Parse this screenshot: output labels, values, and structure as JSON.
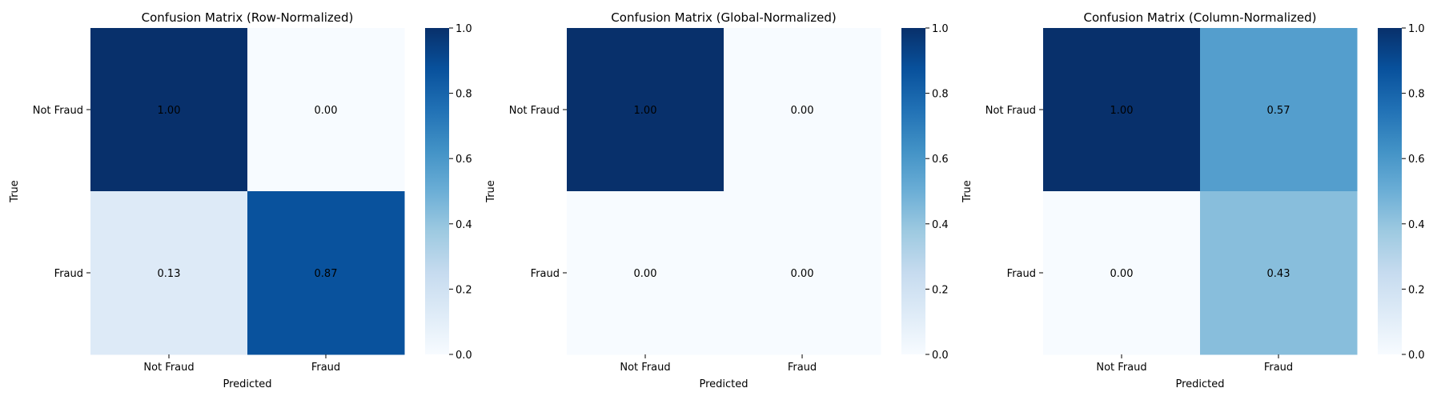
{
  "chart_data": [
    {
      "type": "heatmap",
      "title": "Confusion Matrix (Row-Normalized)",
      "xlabel": "Predicted",
      "ylabel": "True",
      "x_categories": [
        "Not Fraud",
        "Fraud"
      ],
      "y_categories": [
        "Not Fraud",
        "Fraud"
      ],
      "values": [
        [
          1.0,
          0.0
        ],
        [
          0.13,
          0.87
        ]
      ],
      "value_format": "0.00",
      "colormap": "Blues",
      "colorbar": {
        "range": [
          0,
          1
        ],
        "ticks": [
          "0.0",
          "0.2",
          "0.4",
          "0.6",
          "0.8",
          "1.0"
        ]
      },
      "grid": false
    },
    {
      "type": "heatmap",
      "title": "Confusion Matrix (Global-Normalized)",
      "xlabel": "Predicted",
      "ylabel": "True",
      "x_categories": [
        "Not Fraud",
        "Fraud"
      ],
      "y_categories": [
        "Not Fraud",
        "Fraud"
      ],
      "values": [
        [
          1.0,
          0.0
        ],
        [
          0.0,
          0.0
        ]
      ],
      "value_format": "0.00",
      "colormap": "Blues",
      "colorbar": {
        "range": [
          0,
          1
        ],
        "ticks": [
          "0.0",
          "0.2",
          "0.4",
          "0.6",
          "0.8",
          "1.0"
        ]
      },
      "grid": false
    },
    {
      "type": "heatmap",
      "title": "Confusion Matrix (Column-Normalized)",
      "xlabel": "Predicted",
      "ylabel": "True",
      "x_categories": [
        "Not Fraud",
        "Fraud"
      ],
      "y_categories": [
        "Not Fraud",
        "Fraud"
      ],
      "values": [
        [
          1.0,
          0.57
        ],
        [
          0.0,
          0.43
        ]
      ],
      "value_format": "0.00",
      "colormap": "Blues",
      "colorbar": {
        "range": [
          0,
          1
        ],
        "ticks": [
          "0.0",
          "0.2",
          "0.4",
          "0.6",
          "0.8",
          "1.0"
        ]
      },
      "grid": false
    }
  ]
}
